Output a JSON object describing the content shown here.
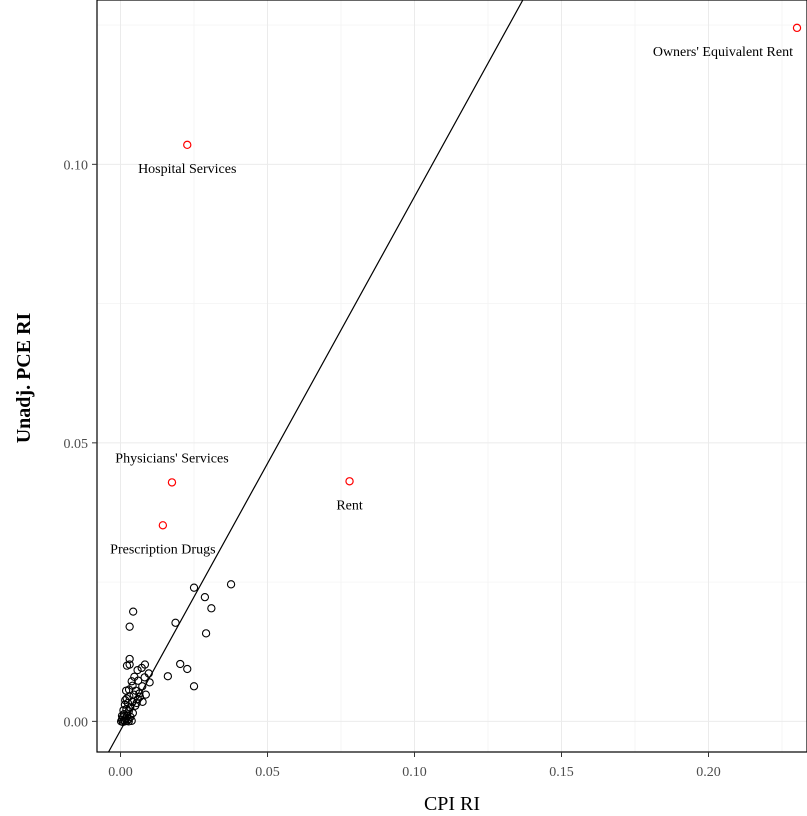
{
  "chart_data": {
    "type": "scatter",
    "title": "",
    "xlabel": "CPI RI",
    "ylabel": "Unadj. PCE RI",
    "xlim": [
      -0.008,
      0.2335
    ],
    "ylim": [
      -0.0055,
      0.1295
    ],
    "x_ticks": [
      {
        "value": 0.0,
        "label": "0.00"
      },
      {
        "value": 0.05,
        "label": "0.05"
      },
      {
        "value": 0.1,
        "label": "0.10"
      },
      {
        "value": 0.15,
        "label": "0.15"
      },
      {
        "value": 0.2,
        "label": "0.20"
      }
    ],
    "y_ticks": [
      {
        "value": 0.0,
        "label": "0.00"
      },
      {
        "value": 0.05,
        "label": "0.05"
      },
      {
        "value": 0.1,
        "label": "0.10"
      }
    ],
    "grid": true,
    "reference_line": {
      "slope": 0.958,
      "intercept": -0.0016
    },
    "highlight_color": "#ff0000",
    "point_color": "#000000",
    "labeled_points": [
      {
        "label": "Owners' Equivalent Rent",
        "x": 0.2301,
        "y": 0.1245,
        "label_anchor": "end",
        "label_side": "below"
      },
      {
        "label": "Hospital Services",
        "x": 0.0227,
        "y": 0.1035,
        "label_anchor": "middle",
        "label_side": "below"
      },
      {
        "label": "Physicians' Services",
        "x": 0.0175,
        "y": 0.0429,
        "label_anchor": "middle",
        "label_side": "above"
      },
      {
        "label": "Rent",
        "x": 0.0779,
        "y": 0.0431,
        "label_anchor": "middle",
        "label_side": "below"
      },
      {
        "label": "Prescription Drugs",
        "x": 0.0144,
        "y": 0.0352,
        "label_anchor": "middle",
        "label_side": "below"
      }
    ],
    "points": [
      [
        0.0376,
        0.0246
      ],
      [
        0.025,
        0.024
      ],
      [
        0.0287,
        0.0223
      ],
      [
        0.0309,
        0.0203
      ],
      [
        0.0187,
        0.0177
      ],
      [
        0.0291,
        0.0158
      ],
      [
        0.0203,
        0.0103
      ],
      [
        0.0227,
        0.0094
      ],
      [
        0.0161,
        0.0081
      ],
      [
        0.025,
        0.0063
      ],
      [
        0.0043,
        0.0197
      ],
      [
        0.0031,
        0.017
      ],
      [
        0.0031,
        0.0112
      ],
      [
        0.0031,
        0.0102
      ],
      [
        0.0022,
        0.01
      ],
      [
        0.0083,
        0.0102
      ],
      [
        0.0072,
        0.0096
      ],
      [
        0.0058,
        0.0092
      ],
      [
        0.0096,
        0.0086
      ],
      [
        0.0082,
        0.0079
      ],
      [
        0.0047,
        0.008
      ],
      [
        0.0099,
        0.007
      ],
      [
        0.006,
        0.0073
      ],
      [
        0.0038,
        0.0072
      ],
      [
        0.0074,
        0.0063
      ],
      [
        0.0041,
        0.0064
      ],
      [
        0.0029,
        0.0057
      ],
      [
        0.0019,
        0.0055
      ],
      [
        0.0052,
        0.0055
      ],
      [
        0.0064,
        0.005
      ],
      [
        0.0086,
        0.0048
      ],
      [
        0.0045,
        0.0048
      ],
      [
        0.003,
        0.0045
      ],
      [
        0.0021,
        0.0041
      ],
      [
        0.0059,
        0.004
      ],
      [
        0.0075,
        0.0035
      ],
      [
        0.0041,
        0.0035
      ],
      [
        0.0025,
        0.0033
      ],
      [
        0.0015,
        0.003
      ],
      [
        0.005,
        0.0028
      ],
      [
        0.0033,
        0.0025
      ],
      [
        0.002,
        0.0022
      ],
      [
        0.001,
        0.002
      ],
      [
        0.0028,
        0.0018
      ],
      [
        0.0042,
        0.0015
      ],
      [
        0.0012,
        0.0013
      ],
      [
        0.0022,
        0.001
      ],
      [
        0.0034,
        0.0008
      ],
      [
        0.0008,
        0.0007
      ],
      [
        0.0018,
        0.0005
      ],
      [
        0.0028,
        0.0004
      ],
      [
        0.0005,
        0.0003
      ],
      [
        0.0012,
        0.0002
      ],
      [
        0.0021,
        0.0001
      ],
      [
        0.0038,
        0.0001
      ],
      [
        0.0002,
        0.0
      ],
      [
        0.0008,
        -0.0001
      ],
      [
        0.0015,
        0.0
      ],
      [
        0.0028,
        0.0
      ],
      [
        0.0005,
        0.001
      ],
      [
        0.0016,
        0.0038
      ],
      [
        0.0066,
        0.0044
      ],
      [
        0.0055,
        0.0033
      ]
    ]
  }
}
